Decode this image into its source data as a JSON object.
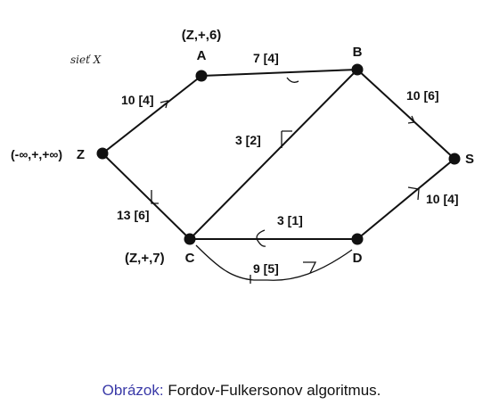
{
  "network_label": "sieť X",
  "nodes": {
    "Z": {
      "name": "Z",
      "tag": "(-∞,+,+∞)"
    },
    "A": {
      "name": "A",
      "tag": "(Z,+,6)"
    },
    "B": {
      "name": "B"
    },
    "C": {
      "name": "C",
      "tag": "(Z,+,7)"
    },
    "D": {
      "name": "D"
    },
    "S": {
      "name": "S"
    }
  },
  "edges": {
    "ZA": "10 [4]",
    "AB": "7 [4]",
    "BS": "10 [6]",
    "ZC": "13 [6]",
    "CB": "3 [2]",
    "DC": "3 [1]",
    "CD": "9 [5]",
    "DS": "10 [4]"
  },
  "caption": {
    "prefix": "Obrázok:",
    "text": "Fordov-Fulkersonov algoritmus."
  },
  "colors": {
    "ink": "#111111",
    "caption_prefix": "#3a3aa8"
  }
}
